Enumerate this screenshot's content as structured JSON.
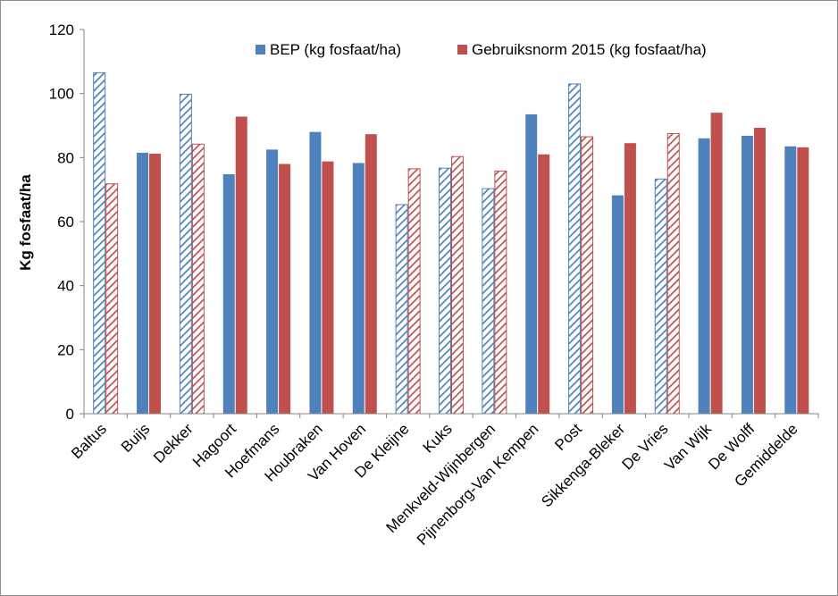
{
  "chart_data": {
    "type": "bar",
    "title": "",
    "xlabel": "",
    "ylabel": "Kg fosfaat/ha",
    "ylim": [
      0,
      120
    ],
    "yticks": [
      0,
      20,
      40,
      60,
      80,
      100,
      120
    ],
    "grid": false,
    "legend_position": "top-right",
    "categories": [
      "Baltus",
      "Buijs",
      "Dekker",
      "Hagoort",
      "Hoefmans",
      "Houbraken",
      "Van Hoven",
      "De Kleijne",
      "Kuks",
      "Menkveld-Wijnbergen",
      "Pijnenborg-Van Kempen",
      "Post",
      "Sikkenga-Bleker",
      "De Vries",
      "Van Wijk",
      "De Wolff",
      "Gemiddelde"
    ],
    "hatched_categories": [
      "Baltus",
      "Dekker",
      "De Kleijne",
      "Kuks",
      "Menkveld-Wijnbergen",
      "Post",
      "De Vries"
    ],
    "series": [
      {
        "name": "BEP (kg fosfaat/ha)",
        "color": "#4f81bd",
        "values": [
          106.5,
          81.5,
          99.8,
          74.8,
          82.5,
          88.0,
          78.3,
          65.3,
          76.7,
          70.3,
          93.5,
          103.0,
          68.2,
          73.3,
          86.0,
          86.8,
          83.5
        ]
      },
      {
        "name": "Gebruiksnorm 2015 (kg fosfaat/ha)",
        "color": "#c0504d",
        "values": [
          71.8,
          81.2,
          84.2,
          92.8,
          78.0,
          78.8,
          87.3,
          76.5,
          80.3,
          75.8,
          81.0,
          86.5,
          84.5,
          87.5,
          94.0,
          89.3,
          83.2
        ]
      }
    ]
  }
}
